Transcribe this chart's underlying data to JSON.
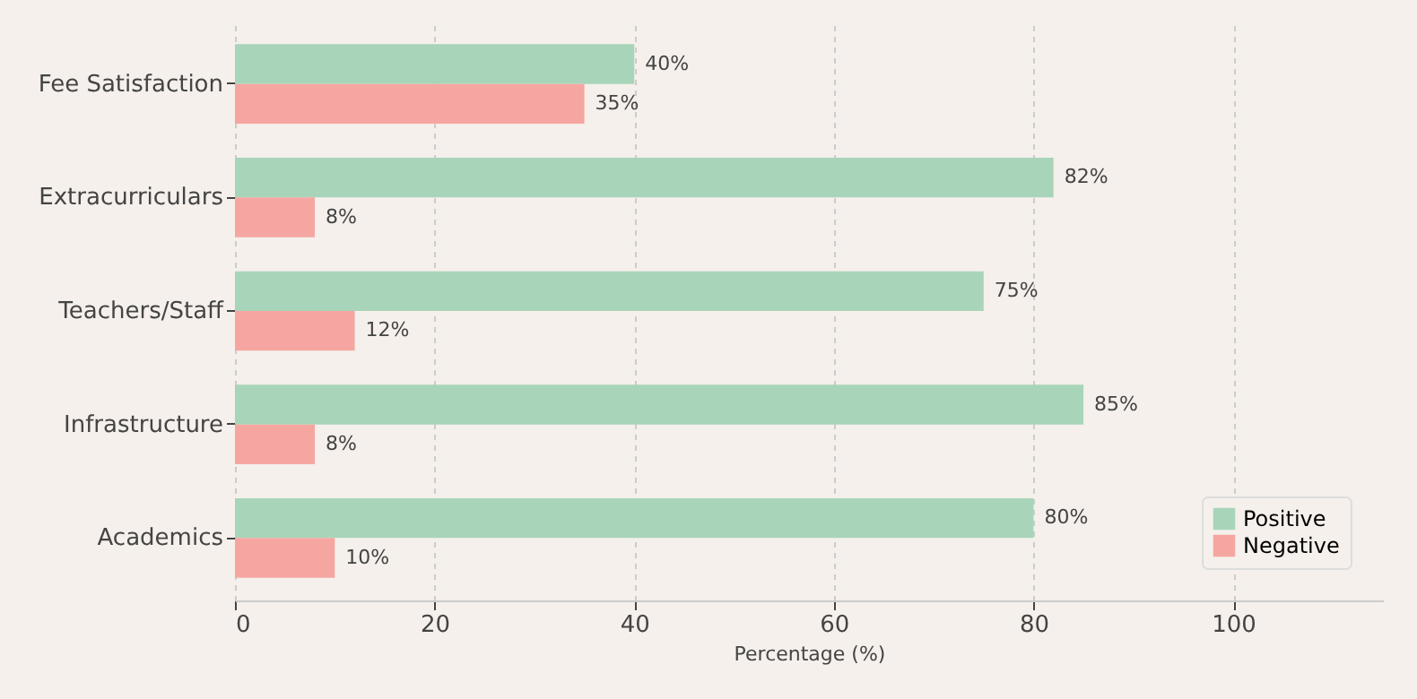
{
  "chart_data": {
    "type": "bar",
    "orientation": "horizontal",
    "xlabel": "Percentage (%)",
    "categories": [
      "Fee Satisfaction",
      "Extracurriculars",
      "Teachers/Staff",
      "Infrastructure",
      "Academics"
    ],
    "series": [
      {
        "name": "Positive",
        "color": "#a8d5ba",
        "values": [
          40,
          82,
          75,
          85,
          80
        ],
        "value_labels": [
          "40%",
          "82%",
          "75%",
          "85%",
          "80%"
        ]
      },
      {
        "name": "Negative",
        "color": "#f6a6a1",
        "values": [
          35,
          8,
          12,
          8,
          10
        ],
        "value_labels": [
          "35%",
          "8%",
          "12%",
          "8%",
          "10%"
        ]
      }
    ],
    "xlim": [
      0,
      115
    ],
    "xticks": [
      0,
      20,
      40,
      60,
      80,
      100
    ],
    "grid": "x",
    "legend": "bottom right"
  }
}
